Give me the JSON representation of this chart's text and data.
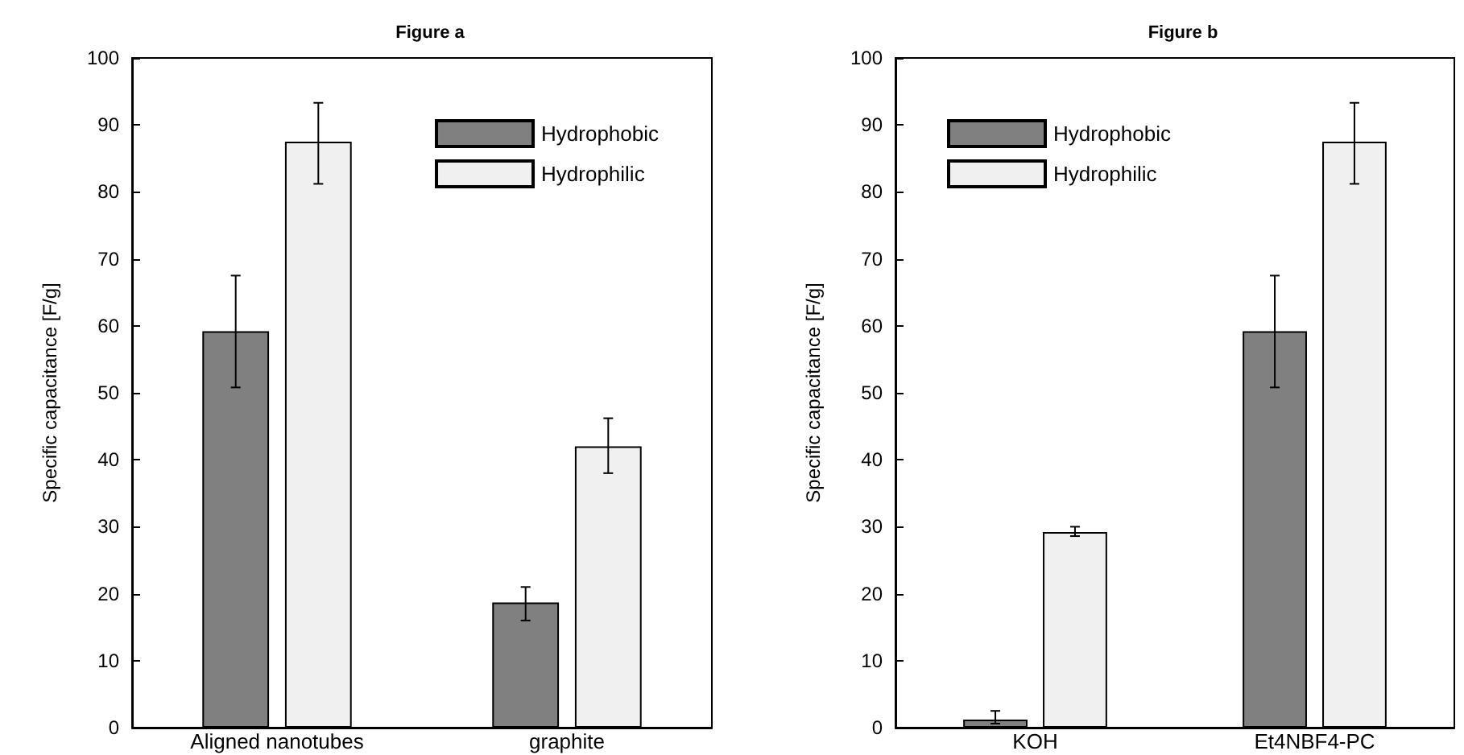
{
  "chart_data": [
    {
      "type": "bar",
      "title": "Figure a",
      "ylabel": "Specific capacitance [F/g]",
      "categories": [
        "Aligned nanotubes",
        "graphite"
      ],
      "series": [
        {
          "name": "Hydrophobic",
          "color": "#808080",
          "values": [
            59.2,
            18.7
          ],
          "errors": [
            [
              50.8,
              67.5
            ],
            [
              16,
              21
            ]
          ]
        },
        {
          "name": "Hydrophilic",
          "color": "#f0f0f0",
          "values": [
            87.5,
            42
          ],
          "errors": [
            [
              81.2,
              93.3
            ],
            [
              38,
              46.2
            ]
          ]
        }
      ],
      "ylim": [
        0,
        100
      ],
      "yticks": [
        0,
        10,
        20,
        30,
        40,
        50,
        60,
        70,
        80,
        90,
        100
      ],
      "legend": "top right"
    },
    {
      "type": "bar",
      "title": "Figure b",
      "ylabel": "Specific capacitance [F/g]",
      "categories": [
        "KOH",
        "Et4NBF4-PC"
      ],
      "series": [
        {
          "name": "Hydrophobic",
          "color": "#808080",
          "values": [
            1.2,
            59.2
          ],
          "errors": [
            [
              0.6,
              2.5
            ],
            [
              50.8,
              67.5
            ]
          ]
        },
        {
          "name": "Hydrophilic",
          "color": "#f0f0f0",
          "values": [
            29.2,
            87.5
          ],
          "errors": [
            [
              28.6,
              30
            ],
            [
              81.2,
              93.3
            ]
          ]
        }
      ],
      "ylim": [
        0,
        100
      ],
      "yticks": [
        0,
        10,
        20,
        30,
        40,
        50,
        60,
        70,
        80,
        90,
        100
      ],
      "legend": "top left"
    }
  ]
}
